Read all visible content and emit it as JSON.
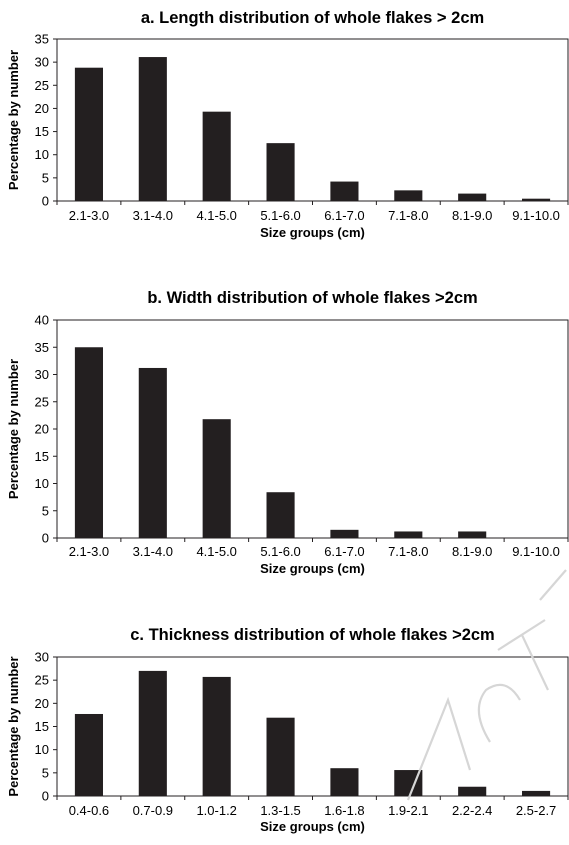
{
  "chart_data": [
    {
      "type": "bar",
      "title": "a. Length distribution of whole flakes > 2cm",
      "xlabel": "Size groups (cm)",
      "ylabel": "Percentage by number",
      "categories": [
        "2.1-3.0",
        "3.1-4.0",
        "4.1-5.0",
        "5.1-6.0",
        "6.1-7.0",
        "7.1-8.0",
        "8.1-9.0",
        "9.1-10.0"
      ],
      "values": [
        28.8,
        31.1,
        19.3,
        12.5,
        4.2,
        2.3,
        1.6,
        0.5
      ],
      "ylim": [
        0,
        35
      ],
      "yticks": [
        0,
        5,
        10,
        15,
        20,
        25,
        30,
        35
      ],
      "grid": false,
      "legend": "none"
    },
    {
      "type": "bar",
      "title": "b. Width distribution of whole flakes >2cm",
      "xlabel": "Size groups (cm)",
      "ylabel": "Percentage by number",
      "categories": [
        "2.1-3.0",
        "3.1-4.0",
        "4.1-5.0",
        "5.1-6.0",
        "6.1-7.0",
        "7.1-8.0",
        "8.1-9.0",
        "9.1-10.0"
      ],
      "values": [
        35.0,
        31.2,
        21.8,
        8.4,
        1.5,
        1.2,
        1.2,
        0
      ],
      "ylim": [
        0,
        40
      ],
      "yticks": [
        0,
        5,
        10,
        15,
        20,
        25,
        30,
        35,
        40
      ],
      "grid": false,
      "legend": "none"
    },
    {
      "type": "bar",
      "title": "c. Thickness distribution of whole flakes >2cm",
      "xlabel": "Size groups (cm)",
      "ylabel": "Percentage by number",
      "categories": [
        "0.4-0.6",
        "0.7-0.9",
        "1.0-1.2",
        "1.3-1.5",
        "1.6-1.8",
        "1.9-2.1",
        "2.2-2.4",
        "2.5-2.7"
      ],
      "values": [
        17.7,
        27.0,
        25.7,
        16.9,
        6.0,
        5.6,
        2.0,
        1.1
      ],
      "ylim": [
        0,
        30
      ],
      "yticks": [
        0,
        5,
        10,
        15,
        20,
        25,
        30
      ],
      "grid": false,
      "legend": "none"
    }
  ],
  "colors": {
    "bar": "#231f20",
    "axis": "#231f20",
    "watermark": "#d6d6d6"
  }
}
